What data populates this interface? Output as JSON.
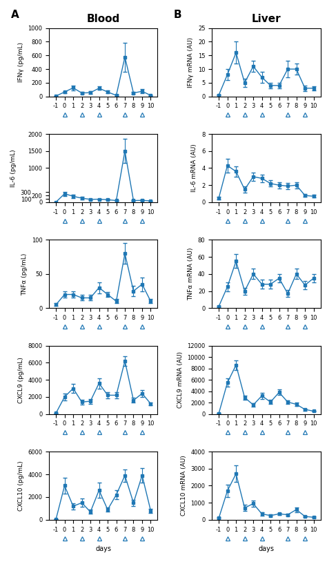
{
  "chart_data": [
    {
      "type": "line",
      "title": "Blood",
      "panel_label": "A",
      "y_label": "IFNγ (pg/mL)",
      "x": [
        -1,
        0,
        1,
        2,
        3,
        4,
        5,
        6,
        7,
        8,
        9,
        10
      ],
      "values": [
        5,
        65,
        125,
        50,
        55,
        120,
        65,
        15,
        575,
        50,
        75,
        15
      ],
      "errors": [
        4,
        15,
        35,
        15,
        20,
        25,
        20,
        8,
        210,
        15,
        30,
        5
      ],
      "xlim": [
        -1.8,
        10.8
      ],
      "xticks": [
        -1,
        0,
        1,
        2,
        3,
        4,
        5,
        6,
        7,
        8,
        9,
        10
      ],
      "ylim": [
        0,
        1000
      ],
      "yticks": [
        0,
        200,
        400,
        600,
        800,
        1000
      ],
      "marker": "square",
      "grid": false,
      "triangle_days": [
        0,
        2,
        4,
        7,
        9
      ]
    },
    {
      "type": "line",
      "y_label": "IL-6 (pg/mL)",
      "x": [
        -1,
        0,
        1,
        2,
        3,
        4,
        5,
        6,
        7,
        8,
        9,
        10
      ],
      "values": [
        5,
        250,
        175,
        120,
        85,
        90,
        75,
        50,
        1500,
        50,
        55,
        40
      ],
      "errors": [
        3,
        60,
        50,
        35,
        20,
        20,
        18,
        12,
        350,
        12,
        15,
        8
      ],
      "xlim": [
        -1.8,
        10.8
      ],
      "xticks": [
        -1,
        0,
        1,
        2,
        3,
        4,
        5,
        6,
        7,
        8,
        9,
        10
      ],
      "ylim": [
        0,
        2000
      ],
      "yticks": [
        0,
        100,
        200,
        300,
        1000,
        1500,
        2000
      ],
      "marker": "square",
      "grid": false,
      "triangle_days": [
        0,
        2,
        4,
        7,
        9
      ]
    },
    {
      "type": "line",
      "y_label": "TNFα (pg/mL)",
      "x": [
        -1,
        0,
        1,
        2,
        3,
        4,
        5,
        6,
        7,
        8,
        9,
        10
      ],
      "values": [
        5,
        20,
        20,
        15,
        15,
        30,
        20,
        10,
        80,
        25,
        35,
        10
      ],
      "errors": [
        2,
        5,
        5,
        4,
        4,
        8,
        4,
        3,
        15,
        8,
        10,
        3
      ],
      "xlim": [
        -1.8,
        10.8
      ],
      "xticks": [
        -1,
        0,
        1,
        2,
        3,
        4,
        5,
        6,
        7,
        8,
        9,
        10
      ],
      "ylim": [
        0,
        100
      ],
      "yticks": [
        0,
        50,
        100
      ],
      "marker": "square",
      "grid": false,
      "triangle_days": [
        0,
        2,
        4,
        7,
        9
      ]
    },
    {
      "type": "line",
      "y_label": "CXCL9 (pg/mL)",
      "x": [
        -1,
        0,
        1,
        2,
        3,
        4,
        5,
        6,
        7,
        8,
        9,
        10
      ],
      "values": [
        100,
        2000,
        3000,
        1400,
        1500,
        3600,
        2200,
        2200,
        6200,
        1600,
        2400,
        1200
      ],
      "errors": [
        40,
        400,
        500,
        280,
        280,
        600,
        380,
        380,
        550,
        280,
        380,
        180
      ],
      "xlim": [
        -1.8,
        10.8
      ],
      "xticks": [
        -1,
        0,
        1,
        2,
        3,
        4,
        5,
        6,
        7,
        8,
        9,
        10
      ],
      "ylim": [
        0,
        8000
      ],
      "yticks": [
        0,
        2000,
        4000,
        6000,
        8000
      ],
      "marker": "square",
      "grid": false,
      "triangle_days": [
        0,
        2,
        4,
        7,
        9
      ]
    },
    {
      "type": "line",
      "y_label": "CXCL10 (pg/mL)",
      "x_label": "days",
      "x": [
        -1,
        0,
        1,
        2,
        3,
        4,
        5,
        6,
        7,
        8,
        9,
        10
      ],
      "values": [
        50,
        3000,
        1200,
        1500,
        700,
        2600,
        900,
        2200,
        3900,
        1500,
        3900,
        800
      ],
      "errors": [
        20,
        700,
        280,
        380,
        180,
        650,
        180,
        380,
        550,
        280,
        650,
        180
      ],
      "xlim": [
        -1.8,
        10.8
      ],
      "xticks": [
        -1,
        0,
        1,
        2,
        3,
        4,
        5,
        6,
        7,
        8,
        9,
        10
      ],
      "ylim": [
        0,
        6000
      ],
      "yticks": [
        0,
        2000,
        4000,
        6000
      ],
      "marker": "square",
      "grid": false,
      "triangle_days": [
        0,
        2,
        4,
        7,
        9
      ]
    },
    {
      "type": "line",
      "title": "Liver",
      "panel_label": "B",
      "y_label": "IFNγ mRNA (AU)",
      "x": [
        -1,
        0,
        1,
        2,
        3,
        4,
        5,
        6,
        7,
        8,
        9,
        10
      ],
      "values": [
        0.5,
        8,
        16,
        5,
        11,
        7,
        4,
        4,
        10,
        10,
        3,
        3
      ],
      "errors": [
        0.2,
        2,
        4,
        1.5,
        2,
        2,
        1,
        1,
        3,
        2,
        1,
        0.8
      ],
      "xlim": [
        -1.8,
        10.8
      ],
      "xticks": [
        -1,
        0,
        1,
        2,
        3,
        4,
        5,
        6,
        7,
        8,
        9,
        10
      ],
      "ylim": [
        0,
        25
      ],
      "yticks": [
        0,
        5,
        10,
        15,
        20,
        25
      ],
      "marker": "square",
      "grid": false,
      "triangle_days": [
        0,
        2,
        4,
        7,
        9
      ]
    },
    {
      "type": "line",
      "y_label": "IL-6 mRNA (AU)",
      "x": [
        -1,
        0,
        1,
        2,
        3,
        4,
        5,
        6,
        7,
        8,
        9,
        10
      ],
      "values": [
        0.5,
        4.3,
        3.6,
        1.5,
        3.0,
        2.8,
        2.2,
        2.0,
        1.9,
        2.0,
        0.8,
        0.7
      ],
      "errors": [
        0.15,
        0.8,
        0.6,
        0.35,
        0.5,
        0.45,
        0.35,
        0.35,
        0.35,
        0.35,
        0.18,
        0.15
      ],
      "xlim": [
        -1.8,
        10.8
      ],
      "xticks": [
        -1,
        0,
        1,
        2,
        3,
        4,
        5,
        6,
        7,
        8,
        9,
        10
      ],
      "ylim": [
        0,
        8
      ],
      "yticks": [
        0,
        2,
        4,
        6,
        8
      ],
      "marker": "square",
      "grid": false,
      "triangle_days": [
        0,
        2,
        4,
        7,
        9
      ]
    },
    {
      "type": "line",
      "y_label": "TNFα mRNA (AU)",
      "x": [
        -1,
        0,
        1,
        2,
        3,
        4,
        5,
        6,
        7,
        8,
        9,
        10
      ],
      "values": [
        2,
        25,
        55,
        20,
        40,
        28,
        28,
        35,
        17,
        40,
        27,
        35
      ],
      "errors": [
        1,
        5,
        8,
        4,
        6,
        5,
        5,
        5,
        4,
        6,
        5,
        5
      ],
      "xlim": [
        -1.8,
        10.8
      ],
      "xticks": [
        -1,
        0,
        1,
        2,
        3,
        4,
        5,
        6,
        7,
        8,
        9,
        10
      ],
      "ylim": [
        0,
        80
      ],
      "yticks": [
        0,
        20,
        40,
        60,
        80
      ],
      "marker": "square",
      "grid": false,
      "triangle_days": [
        0,
        2,
        4,
        7,
        9
      ]
    },
    {
      "type": "line",
      "y_label": "CXCL9 mRNA (AU)",
      "x": [
        -1,
        0,
        1,
        2,
        3,
        4,
        5,
        6,
        7,
        8,
        9,
        10
      ],
      "values": [
        100,
        5500,
        8600,
        2900,
        1600,
        3200,
        2100,
        3800,
        2100,
        1700,
        800,
        500
      ],
      "errors": [
        40,
        750,
        850,
        380,
        280,
        550,
        350,
        480,
        280,
        280,
        180,
        90
      ],
      "xlim": [
        -1.8,
        10.8
      ],
      "xticks": [
        -1,
        0,
        1,
        2,
        3,
        4,
        5,
        6,
        7,
        8,
        9,
        10
      ],
      "ylim": [
        0,
        12000
      ],
      "yticks": [
        0,
        2000,
        4000,
        6000,
        8000,
        10000,
        12000
      ],
      "marker": "square",
      "grid": false,
      "triangle_days": [
        0,
        2,
        4,
        7,
        9
      ]
    },
    {
      "type": "line",
      "y_label": "CXCL10 mRNA (AU)",
      "x_label": "days",
      "x": [
        -1,
        0,
        1,
        2,
        3,
        4,
        5,
        6,
        7,
        8,
        9,
        10
      ],
      "values": [
        100,
        1700,
        2700,
        700,
        950,
        350,
        250,
        350,
        300,
        600,
        200,
        150
      ],
      "errors": [
        40,
        380,
        480,
        180,
        180,
        90,
        70,
        70,
        70,
        140,
        55,
        45
      ],
      "xlim": [
        -1.8,
        10.8
      ],
      "xticks": [
        -1,
        0,
        1,
        2,
        3,
        4,
        5,
        6,
        7,
        8,
        9,
        10
      ],
      "ylim": [
        0,
        4000
      ],
      "yticks": [
        0,
        1000,
        2000,
        3000,
        4000
      ],
      "marker": "square",
      "grid": false,
      "triangle_days": [
        0,
        2,
        4,
        7,
        9
      ]
    }
  ]
}
